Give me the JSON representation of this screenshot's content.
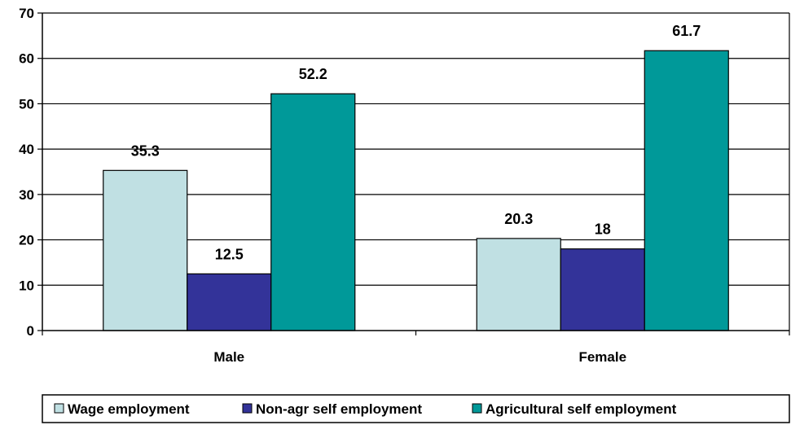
{
  "chart_data": {
    "type": "bar",
    "categories": [
      "Male",
      "Female"
    ],
    "series": [
      {
        "name": "Wage employment",
        "values": [
          35.3,
          20.3
        ],
        "color": "#c0e0e3"
      },
      {
        "name": "Non-agr self employment",
        "values": [
          12.5,
          18
        ],
        "color": "#333399"
      },
      {
        "name": "Agricultural self employment",
        "values": [
          52.2,
          61.7
        ],
        "color": "#009999"
      }
    ],
    "data_labels": [
      [
        "35.3",
        "20.3"
      ],
      [
        "12.5",
        "18"
      ],
      [
        "52.2",
        "61.7"
      ]
    ],
    "ylim": [
      0,
      70
    ],
    "yticks": [
      0,
      10,
      20,
      30,
      40,
      50,
      60,
      70
    ],
    "ytick_labels": [
      "0",
      "10",
      "20",
      "30",
      "40",
      "50",
      "60",
      "70"
    ],
    "grid": true,
    "legend_position": "bottom"
  }
}
